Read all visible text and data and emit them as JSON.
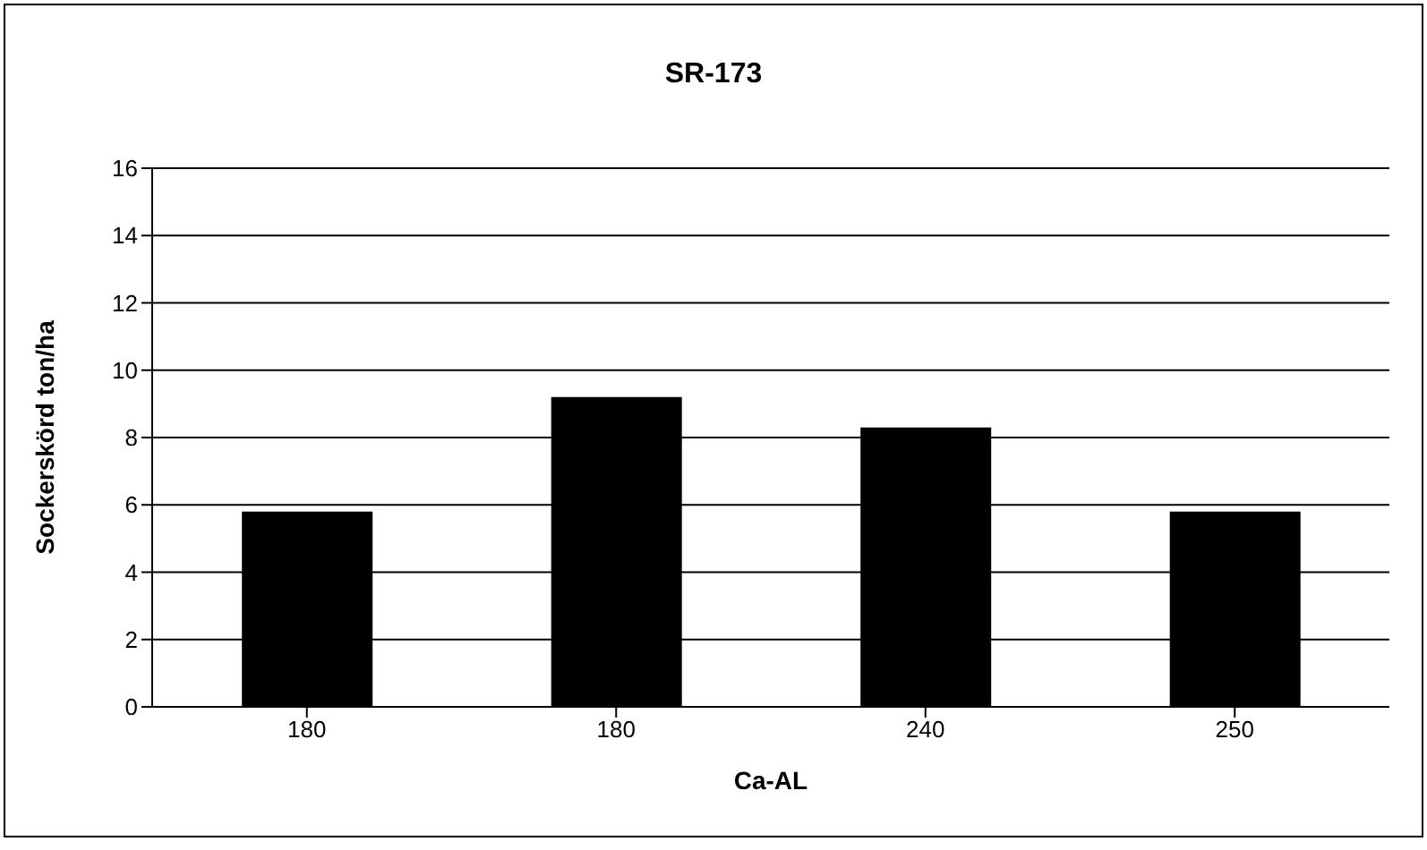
{
  "chart_data": {
    "type": "bar",
    "title": "SR-173",
    "xlabel": "Ca-AL",
    "ylabel": "Sockerskörd ton/ha",
    "categories": [
      "180",
      "180",
      "240",
      "250"
    ],
    "values": [
      5.8,
      9.2,
      8.3,
      5.8
    ],
    "color": "#000000",
    "ylim": [
      0,
      16
    ],
    "yticks": [
      0,
      2,
      4,
      6,
      8,
      10,
      12,
      14,
      16
    ],
    "grid": "y"
  }
}
